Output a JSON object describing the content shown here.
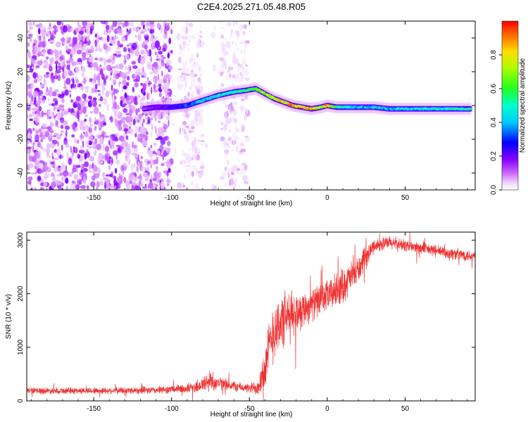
{
  "title": "C2E4.2025.271.05.48.R05",
  "chart_data": [
    {
      "type": "heatmap",
      "name": "spectrogram",
      "xlabel": "Height of straight line (km)",
      "ylabel": "Frequency (Hz)",
      "xlim": [
        -193,
        95
      ],
      "ylim": [
        -50,
        50
      ],
      "xticks": [
        -150,
        -100,
        -50,
        0,
        50
      ],
      "yticks": [
        -40,
        -20,
        0,
        20,
        40
      ],
      "colorbar": {
        "label": "Normalized spectral amplitude",
        "range": [
          0,
          1
        ],
        "ticks": [
          0.0,
          0.2,
          0.4,
          0.6,
          0.8
        ],
        "tick_labels": [
          "0.0",
          "0.2",
          "0.4",
          "0.6",
          "0.8"
        ],
        "colormap": "rainbow (white → magenta → blue → cyan → green → yellow → red)"
      },
      "ridge": {
        "description": "doppler ridge: frequency vs height, amplitude along ridge",
        "x": [
          -118,
          -110,
          -100,
          -90,
          -80,
          -70,
          -60,
          -52,
          -46,
          -40,
          -34,
          -28,
          -22,
          -16,
          -10,
          -4,
          0,
          6,
          12,
          20,
          30,
          40,
          60,
          80,
          92
        ],
        "freq": [
          -2,
          -1,
          -1,
          0,
          3,
          6,
          8,
          9,
          10,
          7,
          4,
          2,
          0,
          -1,
          -2,
          -1,
          0,
          -1,
          -1,
          -1,
          -1,
          -2,
          -2,
          -2,
          -2
        ],
        "amplitude": [
          0.15,
          0.2,
          0.25,
          0.35,
          0.45,
          0.5,
          0.55,
          0.6,
          0.7,
          0.75,
          0.8,
          0.85,
          0.95,
          0.9,
          0.95,
          0.7,
          0.95,
          0.6,
          0.5,
          0.45,
          0.45,
          0.45,
          0.5,
          0.55,
          0.55
        ]
      },
      "noise_regions": [
        {
          "x_range": [
            -193,
            -100
          ],
          "amplitude_range": [
            0.05,
            0.2
          ]
        },
        {
          "x_range": [
            -100,
            -50
          ],
          "amplitude_range": [
            0.02,
            0.08
          ]
        }
      ]
    },
    {
      "type": "line",
      "name": "snr",
      "xlabel": "Height of straight line (km)",
      "ylabel": "SNR (10 * v/v)",
      "xlim": [
        -193,
        95
      ],
      "ylim": [
        0,
        3150
      ],
      "xticks": [
        -150,
        -100,
        -50,
        0,
        50
      ],
      "yticks": [
        0,
        1000,
        2000,
        3000
      ],
      "color": "#ee3333",
      "envelope": {
        "x": [
          -193,
          -150,
          -110,
          -90,
          -80,
          -75,
          -70,
          -55,
          -50,
          -45,
          -40,
          -35,
          -30,
          -25,
          -20,
          -10,
          0,
          10,
          20,
          30,
          40,
          60,
          80,
          95
        ],
        "mean": [
          190,
          190,
          200,
          230,
          300,
          380,
          330,
          250,
          230,
          260,
          600,
          1300,
          1450,
          1550,
          1650,
          1800,
          1950,
          2150,
          2450,
          2900,
          2950,
          2850,
          2750,
          2700
        ],
        "spread": [
          70,
          70,
          80,
          100,
          180,
          250,
          150,
          100,
          100,
          200,
          500,
          700,
          650,
          600,
          450,
          350,
          350,
          400,
          300,
          150,
          150,
          130,
          130,
          130
        ]
      }
    }
  ]
}
